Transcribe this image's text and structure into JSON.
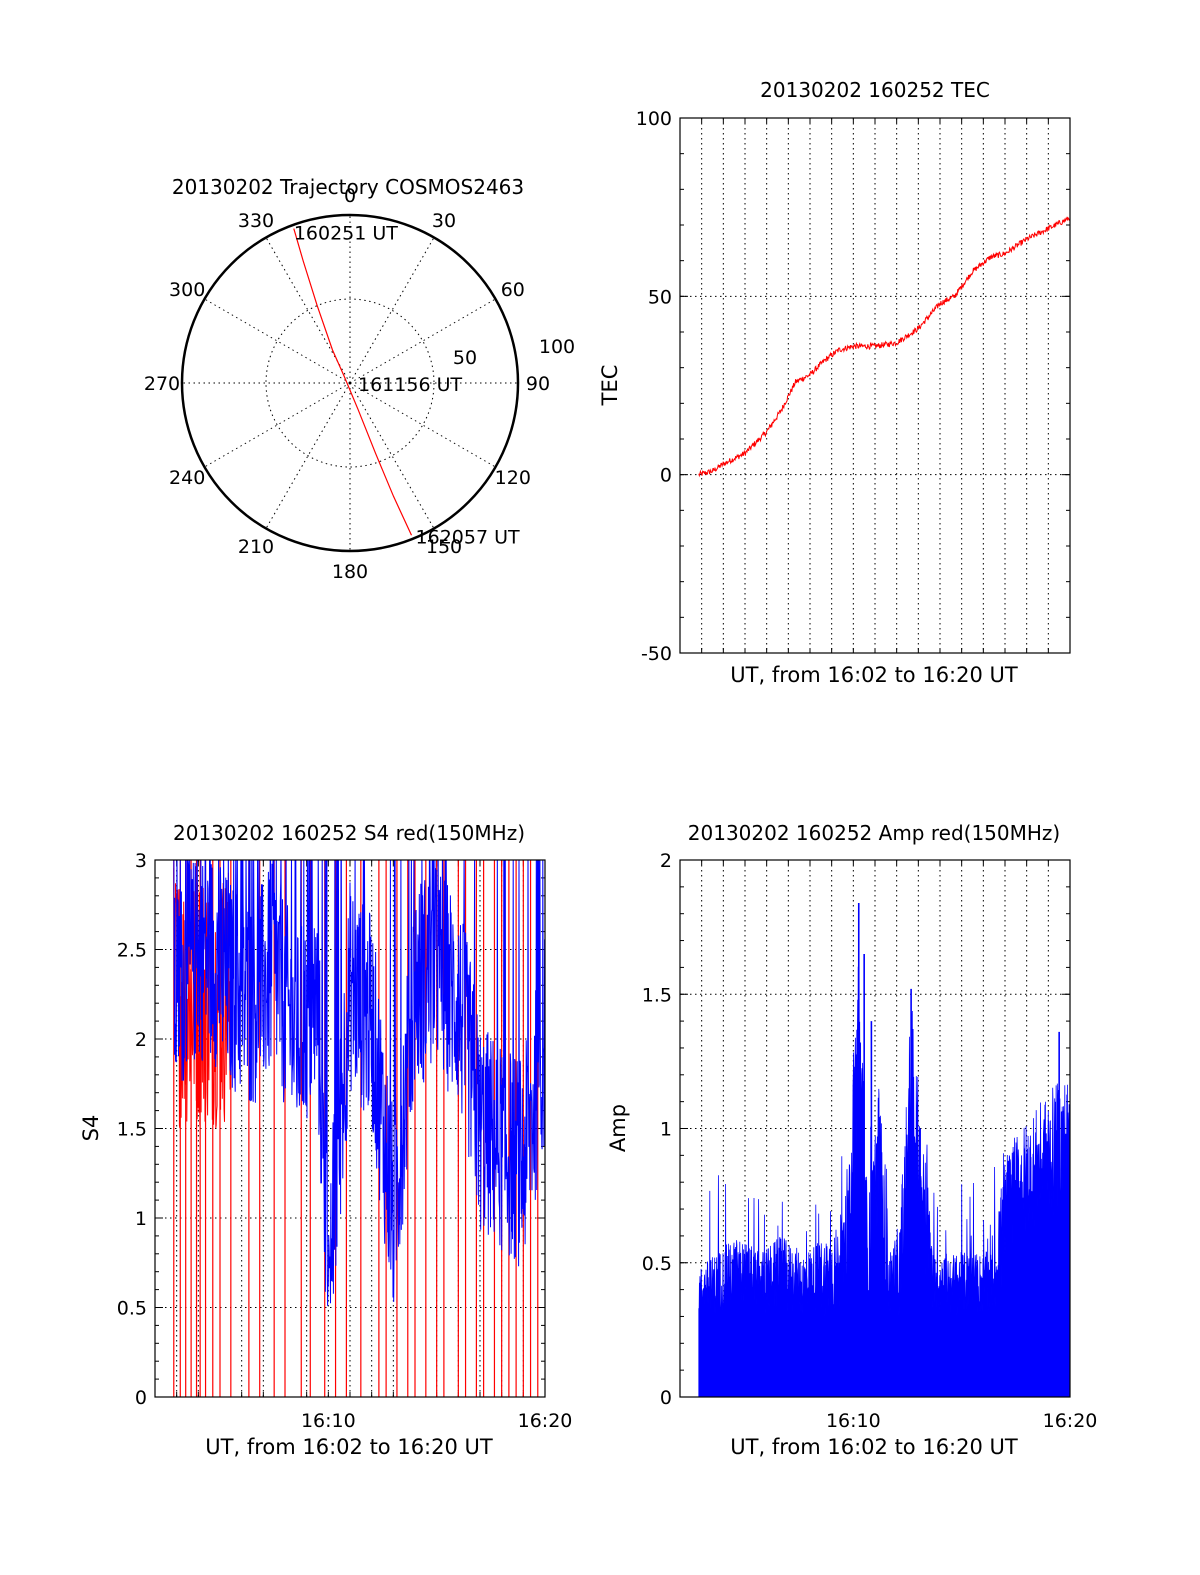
{
  "colors": {
    "red_series": "#ff0000",
    "blue_series": "#0000ff",
    "axes": "#000000",
    "background": "#ffffff"
  },
  "chart_data": [
    {
      "type": "polar",
      "title": "20130202 Trajectory COSMOS2463",
      "azimuth_labels": [
        "0",
        "30",
        "60",
        "90",
        "120",
        "150",
        "180",
        "210",
        "240",
        "270",
        "300",
        "330"
      ],
      "radial_labels": [
        "50",
        "100"
      ],
      "grid": true,
      "track": {
        "color": "#ff0000",
        "points": [
          {
            "azimuth": 340,
            "elevation": 2
          },
          {
            "azimuth": 339,
            "elevation": 20
          },
          {
            "azimuth": 337,
            "elevation": 45
          },
          {
            "azimuth": 332,
            "elevation": 70
          },
          {
            "azimuth": 320,
            "elevation": 85
          },
          {
            "azimuth": 205,
            "elevation": 88
          },
          {
            "azimuth": 163,
            "elevation": 75
          },
          {
            "azimuth": 160,
            "elevation": 50
          },
          {
            "azimuth": 159,
            "elevation": 25
          },
          {
            "azimuth": 158,
            "elevation": 2
          }
        ]
      },
      "annotations": [
        {
          "text": "160251 UT",
          "azimuth": 340,
          "elevation": 2
        },
        {
          "text": "161156 UT",
          "azimuth": 0,
          "elevation": 90
        },
        {
          "text": "162057 UT",
          "azimuth": 158,
          "elevation": 2
        }
      ]
    },
    {
      "type": "line",
      "title": "20130202 160252 TEC",
      "ylabel": "TEC",
      "xlabel": "UT, from 16:02 to 16:20 UT",
      "ylim": [
        -50,
        100
      ],
      "yticks": [
        "100",
        "50",
        "0",
        "-50"
      ],
      "xlim": [
        "16:02",
        "16:20"
      ],
      "grid": true,
      "series": [
        {
          "color": "#ff0000",
          "x": [
            "16:02:52",
            "16:03:30",
            "16:04:00",
            "16:05:00",
            "16:06:00",
            "16:06:40",
            "16:07:20",
            "16:08:00",
            "16:08:40",
            "16:09:20",
            "16:10:00",
            "16:11:00",
            "16:12:00",
            "16:13:00",
            "16:14:00",
            "16:14:40",
            "16:15:30",
            "16:16:20",
            "16:17:00",
            "16:18:00",
            "16:19:00",
            "16:20:00"
          ],
          "values": [
            0,
            1,
            3,
            6,
            12,
            18,
            26,
            28,
            32,
            35,
            36,
            36,
            37,
            41,
            48,
            50,
            57,
            61,
            62,
            66,
            69,
            72
          ]
        }
      ]
    },
    {
      "type": "line",
      "title": "20130202 160252 S4 red(150MHz)",
      "ylabel": "S4",
      "xlabel": "UT, from 16:02 to 16:20 UT",
      "ylim": [
        0,
        3
      ],
      "yticks": [
        "3",
        "2.5",
        "2",
        "1.5",
        "1",
        "0.5",
        "0"
      ],
      "xticks": [
        "16:10",
        "16:20"
      ],
      "xlim": [
        "16:02",
        "16:20"
      ],
      "grid": true,
      "series": [
        {
          "color": "#0000ff",
          "x": [
            "16:02:52",
            "16:03:30",
            "16:04:30",
            "16:05:30",
            "16:06:30",
            "16:07:30",
            "16:08:30",
            "16:09:30",
            "16:10:00",
            "16:11:00",
            "16:12:00",
            "16:13:00",
            "16:14:00",
            "16:15:00",
            "16:16:00",
            "16:16:30",
            "16:17:00",
            "16:18:00",
            "16:19:00",
            "16:20:00"
          ],
          "values": [
            2.2,
            2.4,
            2.5,
            2.3,
            2.2,
            2.4,
            2.0,
            2.2,
            0.6,
            2.3,
            2.1,
            1.0,
            2.3,
            2.4,
            2.2,
            1.9,
            1.5,
            1.4,
            1.3,
            2.0
          ]
        }
      ],
      "red_spikes_from": [
        "16:02:52",
        "16:03:10",
        "16:03:25",
        "16:03:40",
        "16:03:55",
        "16:04:05",
        "16:04:20",
        "16:04:40",
        "16:05:00",
        "16:05:30",
        "16:06:20",
        "16:06:50",
        "16:07:30",
        "16:08:00",
        "16:08:45",
        "16:09:10",
        "16:09:50",
        "16:10:20",
        "16:10:50",
        "16:11:30",
        "16:12:20",
        "16:12:40",
        "16:13:10",
        "16:13:40",
        "16:14:00",
        "16:14:30",
        "16:15:00",
        "16:15:20",
        "16:16:00",
        "16:16:20",
        "16:16:50",
        "16:17:10",
        "16:17:40",
        "16:18:00",
        "16:18:20",
        "16:18:40",
        "16:19:00",
        "16:19:20",
        "16:19:40"
      ]
    },
    {
      "type": "area",
      "title": "20130202 160252 Amp red(150MHz)",
      "ylabel": "Amp",
      "xlabel": "UT, from 16:02 to 16:20 UT",
      "ylim": [
        0,
        2
      ],
      "yticks": [
        "2",
        "1.5",
        "1",
        "0.5",
        "0"
      ],
      "xticks": [
        "16:10",
        "16:20"
      ],
      "xlim": [
        "16:02",
        "16:20"
      ],
      "grid": true,
      "series": [
        {
          "color": "#0000ff",
          "x": [
            "16:02:52",
            "16:03:40",
            "16:04:40",
            "16:05:40",
            "16:06:40",
            "16:07:40",
            "16:08:40",
            "16:09:40",
            "16:10:15",
            "16:10:40",
            "16:11:10",
            "16:11:40",
            "16:12:10",
            "16:12:40",
            "16:13:10",
            "16:13:40",
            "16:14:40",
            "16:15:40",
            "16:16:30",
            "16:17:00",
            "16:17:40",
            "16:18:40",
            "16:19:40",
            "16:20:00"
          ],
          "values": [
            0.45,
            0.5,
            0.55,
            0.5,
            0.55,
            0.5,
            0.55,
            0.6,
            1.8,
            0.6,
            1.2,
            0.5,
            0.6,
            1.5,
            1.0,
            0.5,
            0.5,
            0.5,
            0.5,
            0.9,
            1.0,
            1.1,
            1.2,
            1.2
          ]
        }
      ]
    }
  ]
}
